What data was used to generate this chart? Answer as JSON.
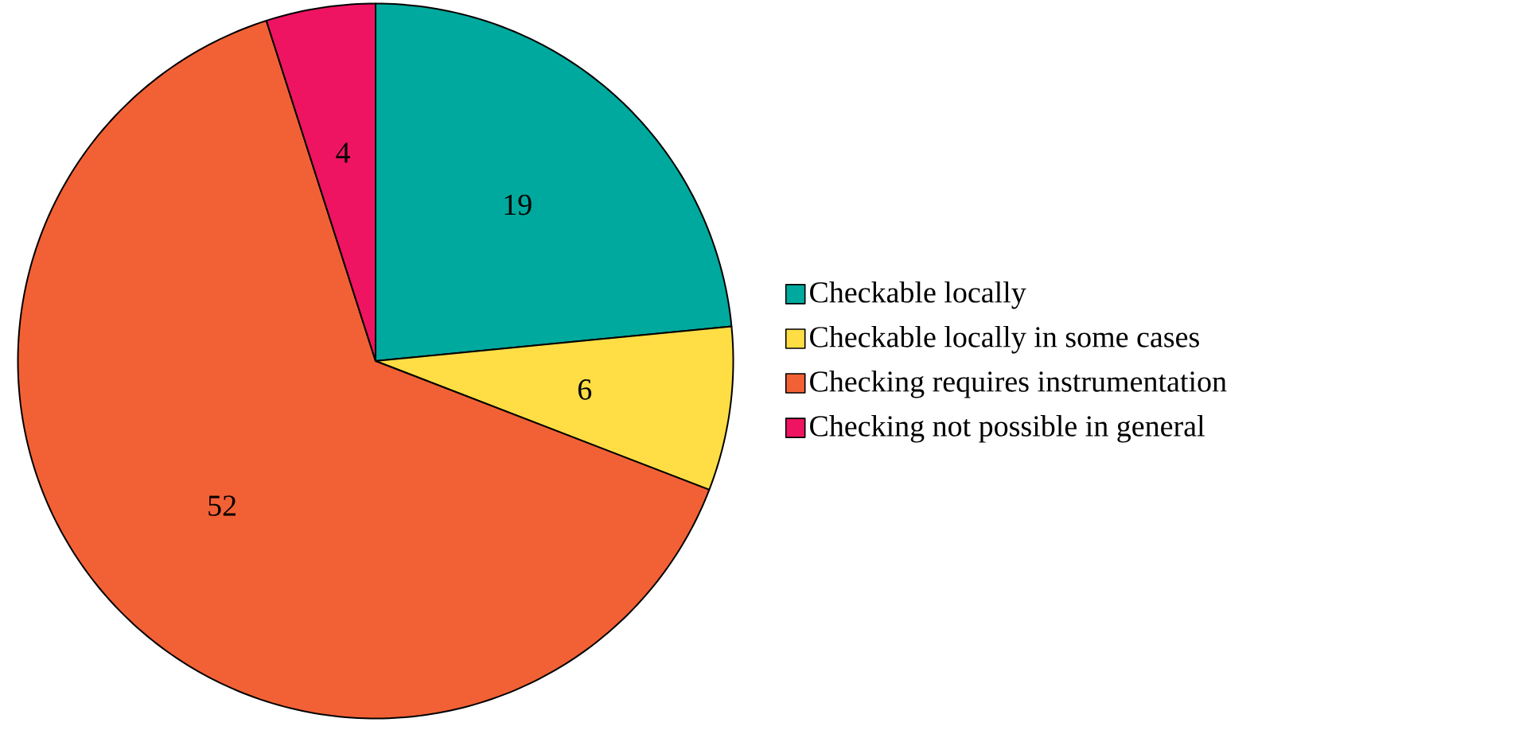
{
  "chart_data": {
    "type": "pie",
    "categories": [
      "Checkable locally",
      "Checkable locally in some cases",
      "Checking requires instrumentation",
      "Checking not possible in general"
    ],
    "values": [
      19,
      6,
      52,
      4
    ],
    "colors": [
      "#00a99d",
      "#fedd45",
      "#f26135",
      "#ee1461"
    ],
    "data_labels": true,
    "legend": "right"
  }
}
